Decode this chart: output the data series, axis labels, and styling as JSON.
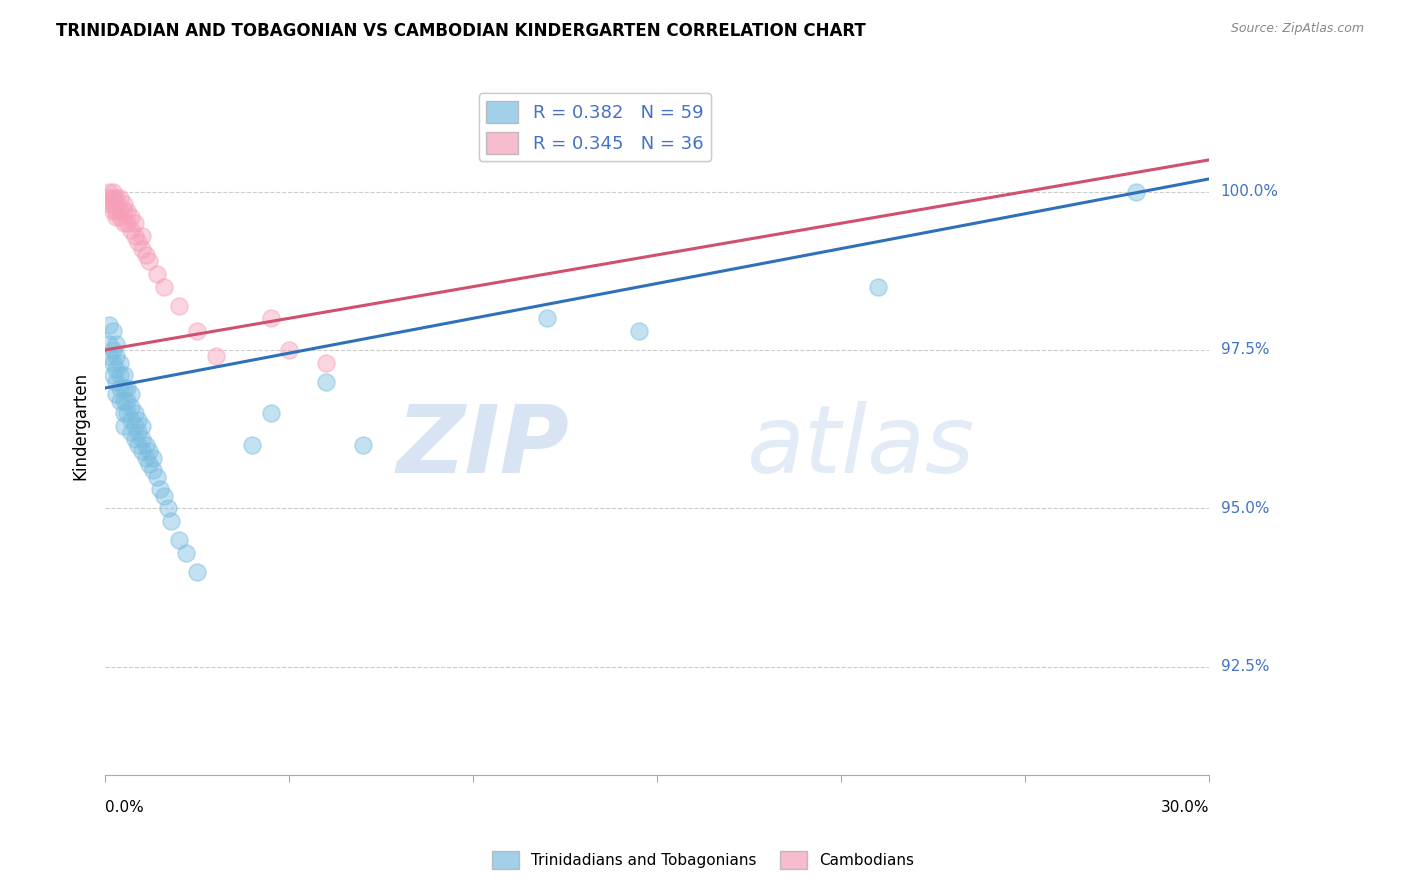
{
  "title": "TRINIDADIAN AND TOBAGONIAN VS CAMBODIAN KINDERGARTEN CORRELATION CHART",
  "source": "Source: ZipAtlas.com",
  "ylabel": "Kindergarten",
  "ylabel_right_labels": [
    "100.0%",
    "97.5%",
    "95.0%",
    "92.5%"
  ],
  "ylabel_right_values": [
    1.0,
    0.975,
    0.95,
    0.925
  ],
  "y_min": 0.908,
  "y_max": 1.018,
  "x_min": 0.0,
  "x_max": 0.3,
  "legend_blue_label": "R = 0.382   N = 59",
  "legend_pink_label": "R = 0.345   N = 36",
  "legend2_blue": "Trinidadians and Tobagonians",
  "legend2_pink": "Cambodians",
  "blue_color": "#7BBDE0",
  "pink_color": "#F5A0B8",
  "blue_line_color": "#3070B8",
  "pink_line_color": "#D05070",
  "watermark_zip": "ZIP",
  "watermark_atlas": "atlas",
  "blue_x": [
    0.001,
    0.001,
    0.001,
    0.002,
    0.002,
    0.002,
    0.002,
    0.003,
    0.003,
    0.003,
    0.003,
    0.003,
    0.004,
    0.004,
    0.004,
    0.004,
    0.005,
    0.005,
    0.005,
    0.005,
    0.005,
    0.006,
    0.006,
    0.006,
    0.007,
    0.007,
    0.007,
    0.007,
    0.008,
    0.008,
    0.008,
    0.009,
    0.009,
    0.009,
    0.01,
    0.01,
    0.01,
    0.011,
    0.011,
    0.012,
    0.012,
    0.013,
    0.013,
    0.014,
    0.015,
    0.016,
    0.017,
    0.018,
    0.02,
    0.022,
    0.025,
    0.04,
    0.045,
    0.06,
    0.07,
    0.12,
    0.145,
    0.21,
    0.28
  ],
  "blue_y": [
    0.979,
    0.976,
    0.974,
    0.978,
    0.975,
    0.973,
    0.971,
    0.976,
    0.974,
    0.972,
    0.97,
    0.968,
    0.973,
    0.971,
    0.969,
    0.967,
    0.971,
    0.969,
    0.967,
    0.965,
    0.963,
    0.969,
    0.967,
    0.965,
    0.968,
    0.966,
    0.964,
    0.962,
    0.965,
    0.963,
    0.961,
    0.964,
    0.962,
    0.96,
    0.963,
    0.961,
    0.959,
    0.96,
    0.958,
    0.959,
    0.957,
    0.958,
    0.956,
    0.955,
    0.953,
    0.952,
    0.95,
    0.948,
    0.945,
    0.943,
    0.94,
    0.96,
    0.965,
    0.97,
    0.96,
    0.98,
    0.978,
    0.985,
    1.0
  ],
  "pink_x": [
    0.001,
    0.001,
    0.001,
    0.002,
    0.002,
    0.002,
    0.002,
    0.003,
    0.003,
    0.003,
    0.003,
    0.004,
    0.004,
    0.004,
    0.005,
    0.005,
    0.005,
    0.006,
    0.006,
    0.007,
    0.007,
    0.008,
    0.008,
    0.009,
    0.01,
    0.01,
    0.011,
    0.012,
    0.014,
    0.016,
    0.02,
    0.025,
    0.03,
    0.045,
    0.05,
    0.06
  ],
  "pink_y": [
    0.998,
    0.999,
    1.0,
    0.998,
    0.997,
    0.999,
    1.0,
    0.997,
    0.996,
    0.998,
    0.999,
    0.996,
    0.997,
    0.999,
    0.995,
    0.997,
    0.998,
    0.995,
    0.997,
    0.994,
    0.996,
    0.993,
    0.995,
    0.992,
    0.991,
    0.993,
    0.99,
    0.989,
    0.987,
    0.985,
    0.982,
    0.978,
    0.974,
    0.98,
    0.975,
    0.973
  ],
  "blue_trend_x": [
    0.0,
    0.3
  ],
  "blue_trend_y": [
    0.969,
    1.002
  ],
  "pink_trend_x": [
    0.0,
    0.3
  ],
  "pink_trend_y": [
    0.975,
    1.005
  ]
}
